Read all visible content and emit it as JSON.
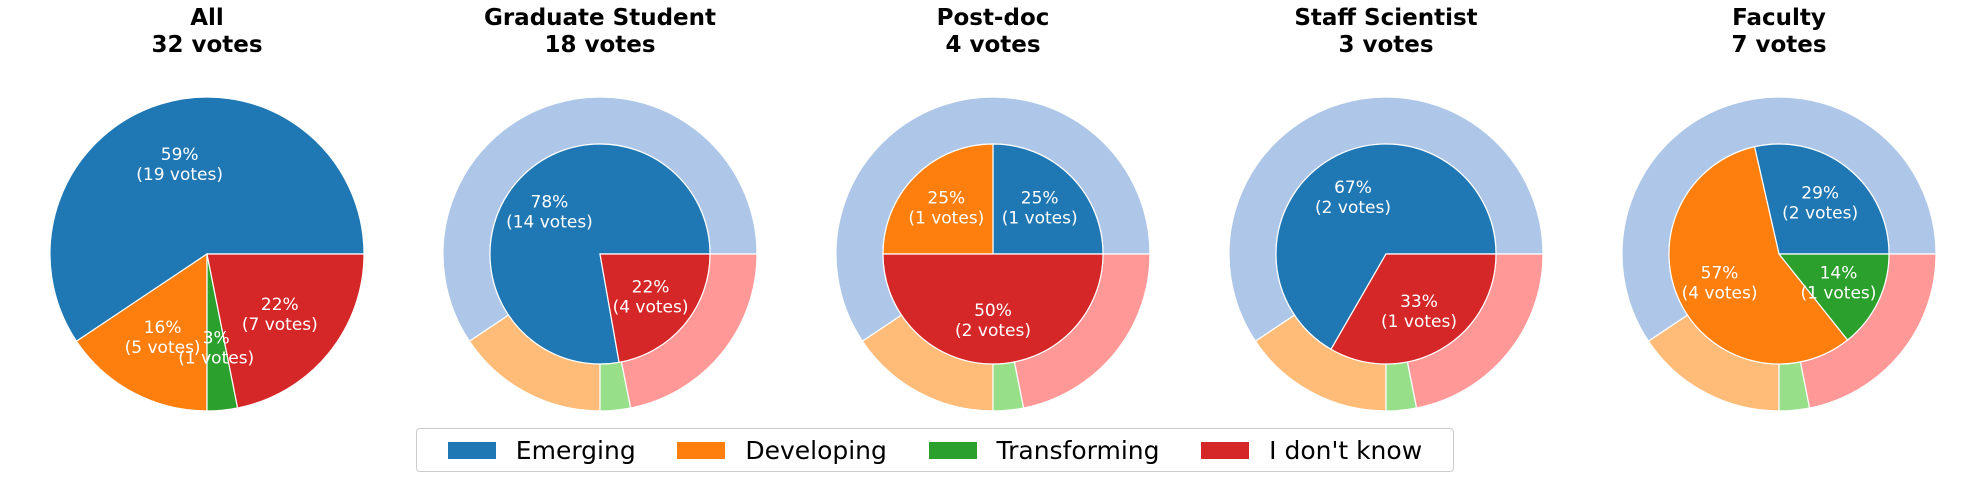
{
  "colors": {
    "inner": [
      "#1f77b4",
      "#ff7f0e",
      "#2ca02c",
      "#d62728"
    ],
    "outer": [
      "#aec7e8",
      "#ffbb78",
      "#98df8a",
      "#ff9896"
    ]
  },
  "legend": {
    "items": [
      {
        "label": "Emerging",
        "color": "#1f77b4"
      },
      {
        "label": "Developing",
        "color": "#ff7f0e"
      },
      {
        "label": "Transforming",
        "color": "#2ca02c"
      },
      {
        "label": "I don't know",
        "color": "#d62728"
      }
    ]
  },
  "chart_data": [
    {
      "type": "pie",
      "title": "All",
      "subtitle": "32 votes",
      "categories": [
        "Emerging",
        "Developing",
        "Transforming",
        "I don't know"
      ],
      "values": [
        19,
        5,
        1,
        7
      ],
      "labels": [
        [
          "59%",
          "(19 votes)"
        ],
        [
          "16%",
          "(5 votes)"
        ],
        [
          "3%",
          "(1 votes)"
        ],
        [
          "22%",
          "(7 votes)"
        ]
      ]
    },
    {
      "type": "pie",
      "title": "Graduate Student",
      "subtitle": "18 votes",
      "categories": [
        "Emerging",
        "Developing",
        "Transforming",
        "I don't know"
      ],
      "values": [
        14,
        0,
        0,
        4
      ],
      "reference_values": [
        19,
        5,
        1,
        7
      ],
      "labels": [
        [
          "78%",
          "(14 votes)"
        ],
        null,
        null,
        [
          "22%",
          "(4 votes)"
        ]
      ]
    },
    {
      "type": "pie",
      "title": "Post-doc",
      "subtitle": "4 votes",
      "categories": [
        "Emerging",
        "Developing",
        "Transforming",
        "I don't know"
      ],
      "values": [
        1,
        1,
        0,
        2
      ],
      "reference_values": [
        19,
        5,
        1,
        7
      ],
      "labels": [
        [
          "25%",
          "(1 votes)"
        ],
        [
          "25%",
          "(1 votes)"
        ],
        null,
        [
          "50%",
          "(2 votes)"
        ]
      ]
    },
    {
      "type": "pie",
      "title": "Staff Scientist",
      "subtitle": "3 votes",
      "categories": [
        "Emerging",
        "Developing",
        "Transforming",
        "I don't know"
      ],
      "values": [
        2,
        0,
        0,
        1
      ],
      "reference_values": [
        19,
        5,
        1,
        7
      ],
      "labels": [
        [
          "67%",
          "(2 votes)"
        ],
        null,
        null,
        [
          "33%",
          "(1 votes)"
        ]
      ]
    },
    {
      "type": "pie",
      "title": "Faculty",
      "subtitle": "7 votes",
      "categories": [
        "Emerging",
        "Developing",
        "Transforming",
        "I don't know"
      ],
      "values": [
        2,
        4,
        1,
        0
      ],
      "reference_values": [
        19,
        5,
        1,
        7
      ],
      "labels": [
        [
          "29%",
          "(2 votes)"
        ],
        [
          "57%",
          "(4 votes)"
        ],
        [
          "14%",
          "(1 votes)"
        ],
        null
      ]
    }
  ]
}
